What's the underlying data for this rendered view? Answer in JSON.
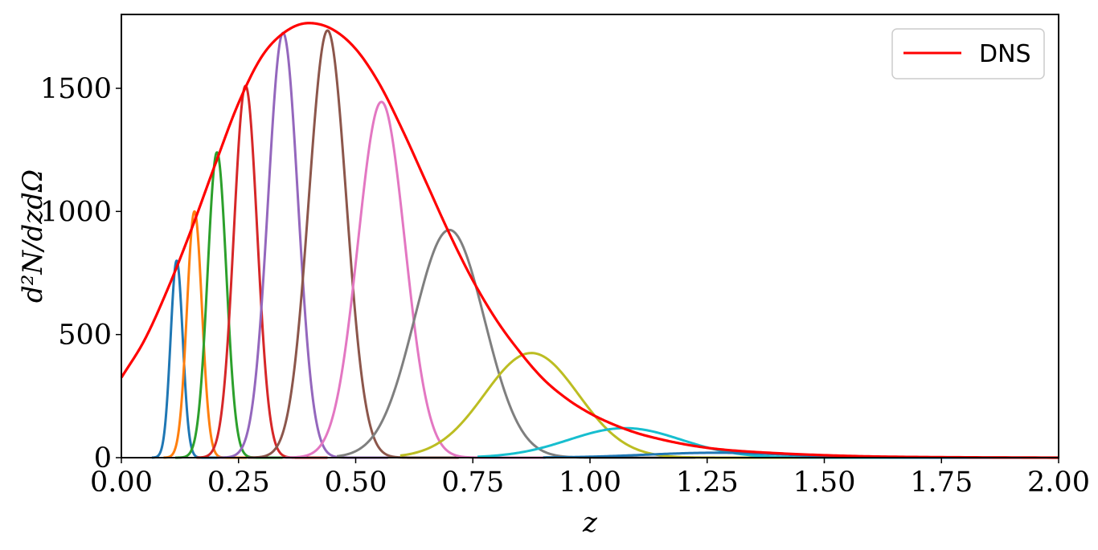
{
  "chart_data": {
    "type": "line",
    "title": "",
    "xlabel": "z",
    "ylabel": "d²N/dzdΩ",
    "xlim": [
      0,
      2
    ],
    "ylim": [
      0,
      1800
    ],
    "grid": false,
    "legend_position": "top-right",
    "x_ticks": [
      "0.00",
      "0.25",
      "0.50",
      "0.75",
      "1.00",
      "1.25",
      "1.50",
      "1.75",
      "2.00"
    ],
    "y_ticks": [
      "0",
      "500",
      "1000",
      "1500"
    ],
    "envelope": {
      "name": "DNS",
      "color": "#ff0000",
      "x": [
        0,
        0.05,
        0.1,
        0.15,
        0.2,
        0.25,
        0.3,
        0.35,
        0.4,
        0.45,
        0.5,
        0.55,
        0.6,
        0.65,
        0.7,
        0.75,
        0.8,
        0.85,
        0.9,
        0.95,
        1.0,
        1.05,
        1.1,
        1.15,
        1.2,
        1.25,
        1.3,
        1.4,
        1.5,
        1.6,
        1.75,
        2.0
      ],
      "y": [
        325,
        480,
        690,
        930,
        1190,
        1440,
        1630,
        1730,
        1765,
        1740,
        1660,
        1520,
        1330,
        1120,
        910,
        720,
        560,
        430,
        320,
        240,
        180,
        135,
        100,
        75,
        55,
        40,
        30,
        18,
        10,
        5,
        2,
        0
      ]
    },
    "components": [
      {
        "color": "#1f77b4",
        "x0": 0.065,
        "mu": 0.118,
        "sigma": 0.013,
        "peak": 800
      },
      {
        "color": "#ff7f0e",
        "x0": 0.09,
        "mu": 0.156,
        "sigma": 0.016,
        "peak": 1000
      },
      {
        "color": "#2ca02c",
        "x0": 0.115,
        "mu": 0.204,
        "sigma": 0.02,
        "peak": 1240
      },
      {
        "color": "#d62728",
        "x0": 0.16,
        "mu": 0.265,
        "sigma": 0.025,
        "peak": 1510
      },
      {
        "color": "#9467bd",
        "x0": 0.205,
        "mu": 0.345,
        "sigma": 0.032,
        "peak": 1725
      },
      {
        "color": "#8c564b",
        "x0": 0.27,
        "mu": 0.44,
        "sigma": 0.04,
        "peak": 1735
      },
      {
        "color": "#e377c2",
        "x0": 0.35,
        "mu": 0.555,
        "sigma": 0.05,
        "peak": 1445
      },
      {
        "color": "#7f7f7f",
        "x0": 0.46,
        "mu": 0.7,
        "sigma": 0.075,
        "peak": 925
      },
      {
        "color": "#bcbd22",
        "x0": 0.595,
        "mu": 0.875,
        "sigma": 0.1,
        "peak": 425
      },
      {
        "color": "#17becf",
        "x0": 0.76,
        "mu": 1.075,
        "sigma": 0.12,
        "peak": 120
      },
      {
        "color": "#1f77b4",
        "x0": 0.9,
        "mu": 1.27,
        "sigma": 0.15,
        "peak": 20
      }
    ]
  }
}
